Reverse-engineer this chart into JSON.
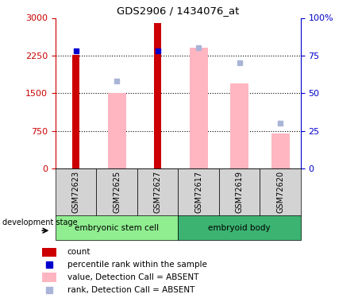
{
  "title": "GDS2906 / 1434076_at",
  "samples": [
    "GSM72623",
    "GSM72625",
    "GSM72627",
    "GSM72617",
    "GSM72619",
    "GSM72620"
  ],
  "groups": [
    {
      "name": "embryonic stem cell",
      "color": "#90ee90",
      "samples_idx": [
        0,
        1,
        2
      ]
    },
    {
      "name": "embryoid body",
      "color": "#3cb371",
      "samples_idx": [
        3,
        4,
        5
      ]
    }
  ],
  "count_values": [
    2270,
    null,
    2900,
    null,
    null,
    null
  ],
  "percentile_values": [
    78,
    null,
    78,
    null,
    null,
    null
  ],
  "absent_value_values": [
    null,
    1500,
    null,
    2400,
    1700,
    700
  ],
  "absent_rank_values": [
    null,
    58,
    null,
    80,
    70,
    30
  ],
  "ylim_left": [
    0,
    3000
  ],
  "ylim_right": [
    0,
    100
  ],
  "yticks_left": [
    0,
    750,
    1500,
    2250,
    3000
  ],
  "yticks_right": [
    0,
    25,
    50,
    75,
    100
  ],
  "ytick_labels_right": [
    "0",
    "25",
    "50",
    "75",
    "100%"
  ],
  "colors": {
    "count": "#cc0000",
    "percentile": "#0000cc",
    "absent_value": "#ffb6c1",
    "absent_rank": "#aab4d8",
    "group1_bg": "#90ee90",
    "group2_bg": "#3cb371",
    "sample_bg": "#d3d3d3",
    "axis_left": "#cc0000",
    "axis_right": "#0000cc"
  },
  "legend_items": [
    {
      "label": "count",
      "color": "#cc0000",
      "type": "rect"
    },
    {
      "label": "percentile rank within the sample",
      "color": "#0000cc",
      "type": "square"
    },
    {
      "label": "value, Detection Call = ABSENT",
      "color": "#ffb6c1",
      "type": "rect"
    },
    {
      "label": "rank, Detection Call = ABSENT",
      "color": "#aab4d8",
      "type": "square"
    }
  ],
  "development_stage_label": "development stage"
}
